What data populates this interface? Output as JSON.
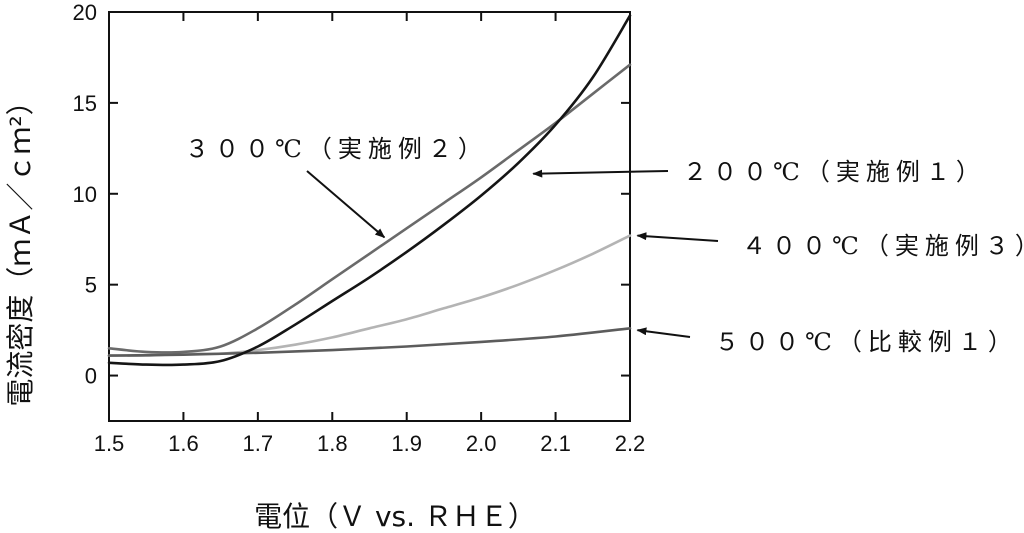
{
  "chart_data": {
    "type": "line",
    "title": "",
    "xlabel": "電位（Ｖ vs. ＲＨＥ）",
    "ylabel": "電流密度（ｍＡ／ｃｍ²）",
    "xlim": [
      1.5,
      2.2
    ],
    "ylim": [
      -2.5,
      20
    ],
    "xticks": [
      "1.5",
      "1.6",
      "1.7",
      "1.8",
      "1.9",
      "2.0",
      "2.1",
      "2.2"
    ],
    "yticks": [
      "0",
      "5",
      "10",
      "15",
      "20"
    ],
    "grid": false,
    "legend": "annotations",
    "series": [
      {
        "name": "２００℃（実施例１）",
        "color": "#151515",
        "x": [
          1.5,
          1.55,
          1.6,
          1.65,
          1.7,
          1.75,
          1.8,
          1.85,
          1.9,
          1.95,
          2.0,
          2.05,
          2.1,
          2.15,
          2.2
        ],
        "y": [
          0.7,
          0.6,
          0.6,
          0.8,
          1.6,
          2.8,
          4.1,
          5.4,
          6.8,
          8.3,
          9.9,
          11.7,
          13.8,
          16.4,
          19.8
        ]
      },
      {
        "name": "３００℃（実施例２）",
        "color": "#6a6a6a",
        "x": [
          1.5,
          1.55,
          1.6,
          1.65,
          1.7,
          1.75,
          1.8,
          1.85,
          1.9,
          1.95,
          2.0,
          2.05,
          2.1,
          2.15,
          2.2
        ],
        "y": [
          1.5,
          1.3,
          1.3,
          1.6,
          2.6,
          3.9,
          5.3,
          6.7,
          8.1,
          9.5,
          10.9,
          12.4,
          13.9,
          15.5,
          17.1
        ]
      },
      {
        "name": "４００℃（実施例３）",
        "color": "#b4b4b4",
        "x": [
          1.5,
          1.55,
          1.6,
          1.65,
          1.7,
          1.75,
          1.8,
          1.85,
          1.9,
          1.95,
          2.0,
          2.05,
          2.1,
          2.15,
          2.2
        ],
        "y": [
          1.1,
          1.1,
          1.2,
          1.2,
          1.4,
          1.7,
          2.1,
          2.6,
          3.1,
          3.7,
          4.3,
          5.0,
          5.8,
          6.7,
          7.7
        ]
      },
      {
        "name": "５００℃（比較例１）",
        "color": "#5c5c5c",
        "x": [
          1.5,
          1.6,
          1.7,
          1.8,
          1.9,
          2.0,
          2.1,
          2.2
        ],
        "y": [
          1.1,
          1.15,
          1.25,
          1.4,
          1.6,
          1.85,
          2.15,
          2.6
        ]
      }
    ],
    "annotations": [
      {
        "text": "３００℃（実施例２）",
        "series": 1,
        "x": 1.87,
        "y": 7.6
      },
      {
        "text": "２００℃（実施例１）",
        "series": 0,
        "x": 2.07,
        "y": 11.1
      },
      {
        "text": "４００℃（実施例３）",
        "series": 2,
        "x": 2.21,
        "y": 7.7
      },
      {
        "text": "５００℃（比較例１）",
        "series": 3,
        "x": 2.21,
        "y": 2.5
      }
    ]
  }
}
